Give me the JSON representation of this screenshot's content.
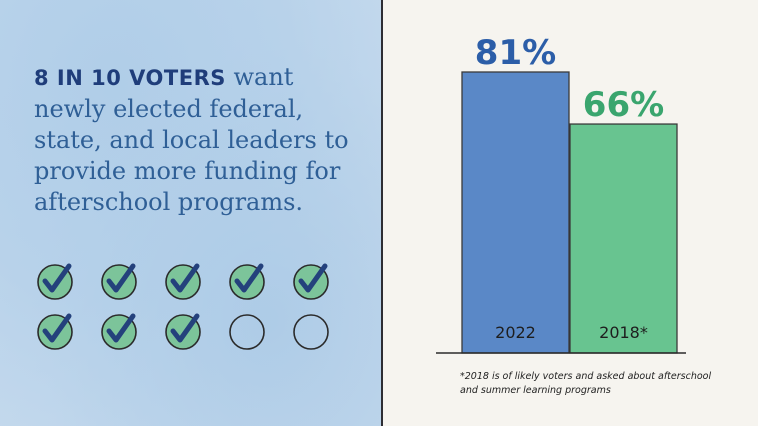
{
  "headline": {
    "lead": "8 IN 10 VOTERS",
    "rest": " want newly elected federal, state, and local leaders to provide more funding for afterschool programs."
  },
  "checkmarks": {
    "total": 10,
    "checked": 8
  },
  "chart_data": {
    "type": "bar",
    "categories": [
      "2022",
      "2018*"
    ],
    "values": [
      81,
      66
    ],
    "value_labels": [
      "81%",
      "66%"
    ],
    "colors": [
      "#4d7fc4",
      "#5cc088"
    ],
    "label_colors": [
      "#2c5ea8",
      "#3aa56e"
    ],
    "ylim": [
      0,
      100
    ],
    "title": "",
    "xlabel": "",
    "ylabel": ""
  },
  "footnote": {
    "line1": "*2018 is of likely voters and asked about afterschool",
    "line2": "and summer learning programs"
  },
  "colors": {
    "panel_blue": "#c9dcee",
    "check_green": "#7cc49a",
    "check_mark": "#24417c",
    "background": "#f6f4ef"
  }
}
